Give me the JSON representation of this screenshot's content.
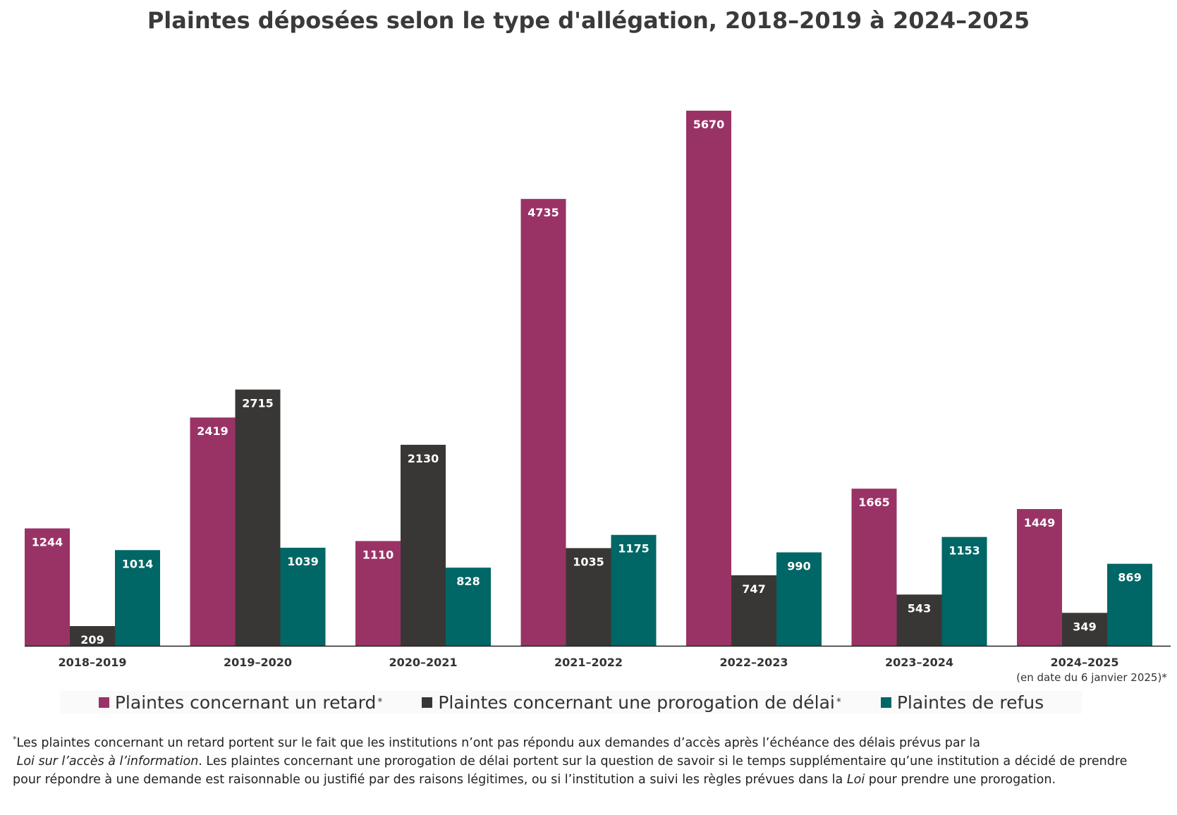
{
  "chart_data": {
    "type": "bar",
    "title": "Plaintes déposées selon le type d'allégation, 2018–2019 à 2024–2025",
    "categories": [
      "2018–2019",
      "2019–2020",
      "2020–2021",
      "2021–2022",
      "2022–2023",
      "2023–2024",
      "2024–2025"
    ],
    "category_notes": [
      "",
      "",
      "",
      "",
      "",
      "",
      "(en date du 6 janvier 2025)*"
    ],
    "series": [
      {
        "name": "Plaintes concernant un retard",
        "name_suffix": "*",
        "color": "#993366",
        "values": [
          1244,
          2419,
          1110,
          4735,
          5670,
          1665,
          1449
        ]
      },
      {
        "name": "Plaintes concernant une prorogation de délai",
        "name_suffix": "*",
        "color": "#393735",
        "values": [
          209,
          2715,
          2130,
          1035,
          747,
          543,
          349
        ]
      },
      {
        "name": "Plaintes de refus",
        "name_suffix": "",
        "color": "#006666",
        "values": [
          1014,
          1039,
          828,
          1175,
          990,
          1153,
          869
        ]
      }
    ],
    "ylim": [
      0,
      5670
    ],
    "grid": false,
    "legend_position": "bottom",
    "xlabel": "",
    "ylabel": ""
  },
  "footnote": {
    "marker": "*",
    "part1": "Les plaintes concernant un retard portent sur le fait que les institutions n’ont pas répondu aux demandes d’accès après l’échéance des délais prévus par la",
    "law_title": "Loi sur l’accès à l’information",
    "part2": ". Les plaintes concernant une prorogation de délai portent sur la question de savoir si le temps supplémentaire qu’une institution a décidé de prendre pour répondre à une demande est raisonnable ou justifié par des raisons légitimes, ou si l’institution a suivi les règles prévues dans la",
    "law_short": "Loi",
    "part3": " pour prendre une prorogation."
  }
}
